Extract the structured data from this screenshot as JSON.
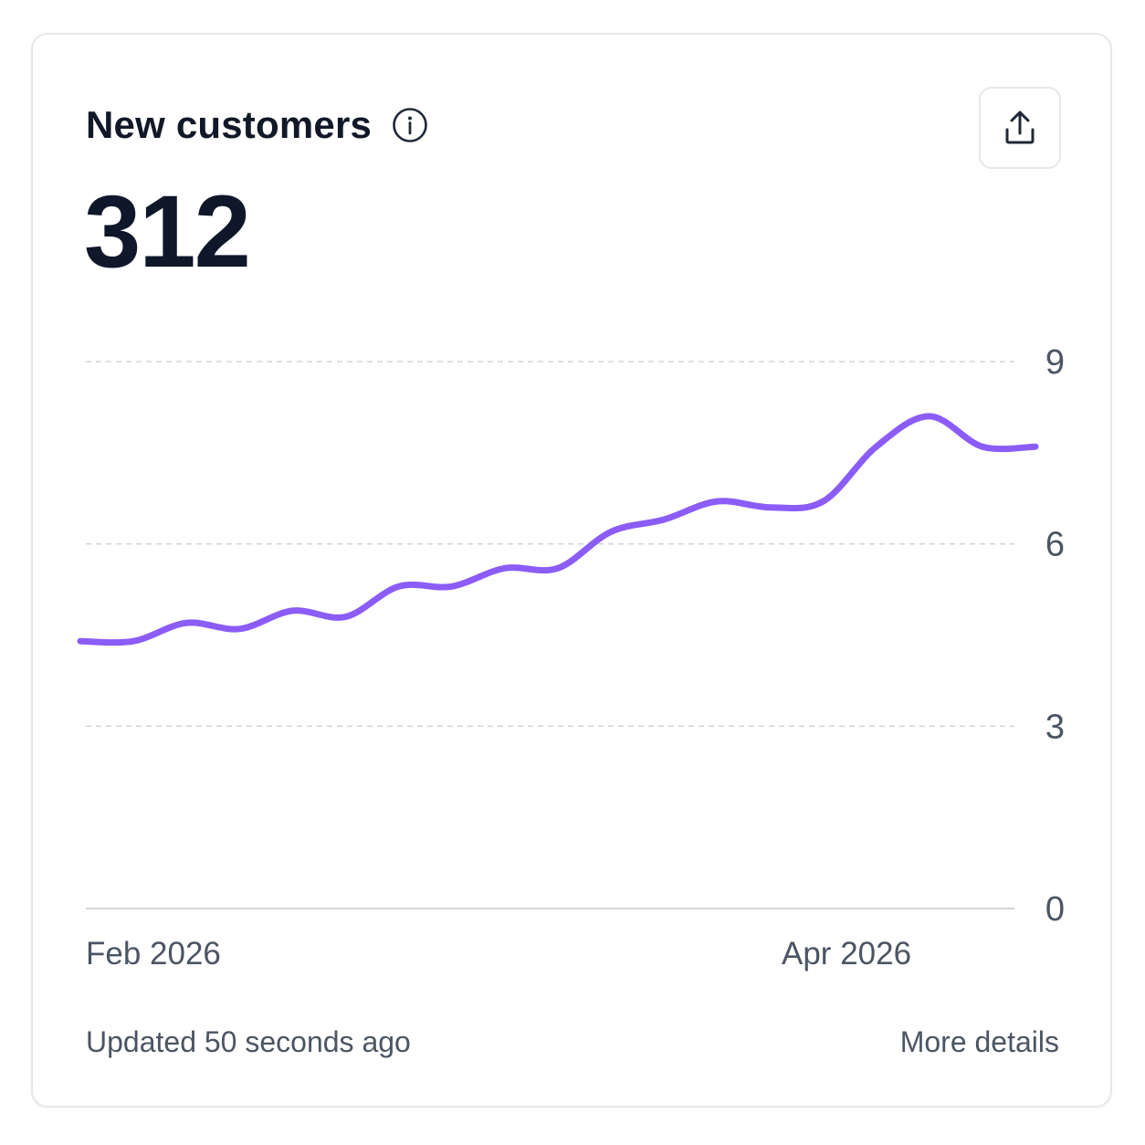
{
  "card": {
    "title": "New customers",
    "metric_value": "312",
    "footer_updated": "Updated 50 seconds ago",
    "footer_link": "More details"
  },
  "icons": {
    "info": "info-icon",
    "share": "share-icon"
  },
  "colors": {
    "line": "#8b5cf6",
    "grid": "#d1d5db",
    "baseline": "#d1d5db",
    "tick_text": "#4b5563"
  },
  "chart_data": {
    "type": "line",
    "ylim": [
      0,
      9
    ],
    "yticks": [
      0,
      3,
      6,
      9
    ],
    "x_tick_labels": [
      "Feb 2026",
      "Apr 2026"
    ],
    "grid": true,
    "y_axis_side": "right",
    "series": [
      {
        "values": [
          4.4,
          4.4,
          4.7,
          4.6,
          4.9,
          4.8,
          5.3,
          5.3,
          5.6,
          5.6,
          6.2,
          6.4,
          6.7,
          6.6,
          6.7,
          7.6,
          8.1,
          7.6,
          7.6
        ]
      }
    ]
  }
}
